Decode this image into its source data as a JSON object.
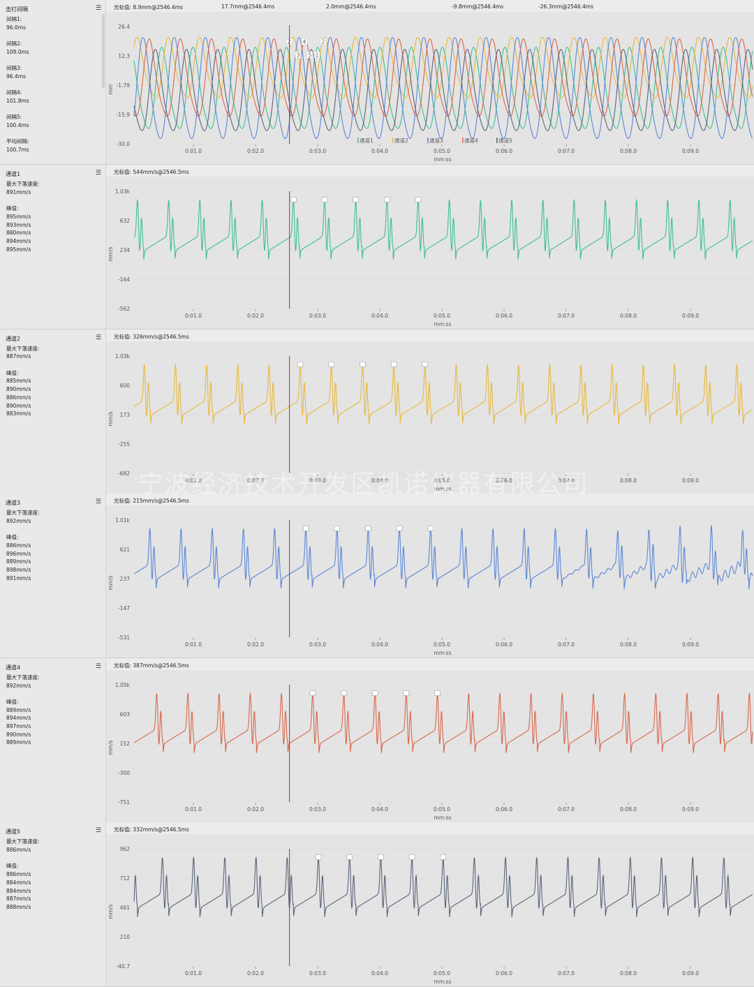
{
  "colors": {
    "ch1": "#3dbf94",
    "ch2": "#e8b83a",
    "ch3": "#5b86d6",
    "ch4": "#d9674a",
    "ch5": "#5a6478",
    "cursor": "#b52a2a"
  },
  "x_ticks": [
    "0:01.0",
    "0:02.0",
    "0:03.0",
    "0:04.0",
    "0:05.0",
    "0:06.0",
    "0:07.0",
    "0:08.0",
    "0:09.0"
  ],
  "x_label": "mm:ss",
  "menu_icon": "list-settings-icon",
  "strike": {
    "title": "击打间隔",
    "info": [
      {
        "label": "间隔1:",
        "value": "96.0ms"
      },
      {
        "label": "间隔2:",
        "value": "109.0ms"
      },
      {
        "label": "间隔3:",
        "value": "96.4ms"
      },
      {
        "label": "间隔4:",
        "value": "101.8ms"
      },
      {
        "label": "间隔5:",
        "value": "100.4ms"
      },
      {
        "label": "平均间隔:",
        "value": "100.7ms"
      }
    ],
    "cursor_values": [
      "光标值: 8.9mm@2546.4ms",
      "17.7mm@2546.4ms",
      "2.0mm@2546.4ms",
      "-9.8mm@2546.4ms",
      "-26.3mm@2546.4ms"
    ],
    "y_label": "mm",
    "y_ticks": [
      "26.4",
      "12.3",
      "-1.79",
      "-15.9",
      "-30.0"
    ],
    "point_labels": [
      "2",
      "4",
      "2",
      "3",
      "5",
      "1"
    ],
    "legend": [
      "通道1",
      "通道2",
      "通道3",
      "通道4",
      "通道5"
    ]
  },
  "channels": [
    {
      "title": "通道1",
      "max_label": "最大下落速度:",
      "max": "891mm/s",
      "peak_label": "峰值:",
      "peaks": [
        "895mm/s",
        "893mm/s",
        "880mm/s",
        "894mm/s",
        "895mm/s"
      ],
      "cursor": "光标值: 544mm/s@2546.5ms",
      "y_label": "mm/s",
      "y_ticks": [
        "1.03k",
        "632",
        "234",
        "-164",
        "-562"
      ]
    },
    {
      "title": "通道2",
      "max_label": "最大下落速度:",
      "max": "887mm/s",
      "peak_label": "峰值:",
      "peaks": [
        "885mm/s",
        "890mm/s",
        "886mm/s",
        "890mm/s",
        "883mm/s"
      ],
      "cursor": "光标值: 326mm/s@2546.5ms",
      "y_label": "mm/s",
      "y_ticks": [
        "1.03k",
        "600",
        "173",
        "-255",
        "-682"
      ]
    },
    {
      "title": "通道3",
      "max_label": "最大下落速度:",
      "max": "892mm/s",
      "peak_label": "峰值:",
      "peaks": [
        "886mm/s",
        "896mm/s",
        "889mm/s",
        "898mm/s",
        "891mm/s"
      ],
      "cursor": "光标值: 215mm/s@2546.5ms",
      "y_label": "mm/s",
      "y_ticks": [
        "1.01k",
        "621",
        "237",
        "-147",
        "-531"
      ]
    },
    {
      "title": "通道4",
      "max_label": "最大下落速度:",
      "max": "892mm/s",
      "peak_label": "峰值:",
      "peaks": [
        "889mm/s",
        "894mm/s",
        "897mm/s",
        "890mm/s",
        "889mm/s"
      ],
      "cursor": "光标值: 387mm/s@2546.5ms",
      "y_label": "mm/s",
      "y_ticks": [
        "1.05k",
        "603",
        "152",
        "-300",
        "-751"
      ]
    },
    {
      "title": "通道5",
      "max_label": "最大下落速度:",
      "max": "886mm/s",
      "peak_label": "峰值:",
      "peaks": [
        "886mm/s",
        "884mm/s",
        "884mm/s",
        "887mm/s",
        "888mm/s"
      ],
      "cursor": "光标值: 332mm/s@2546.5ms",
      "y_label": "mm/s",
      "y_ticks": [
        "962",
        "712",
        "461",
        "210",
        "-40.7"
      ]
    }
  ],
  "watermark": "宁波经济技术开发区凯诺仪器有限公司"
}
